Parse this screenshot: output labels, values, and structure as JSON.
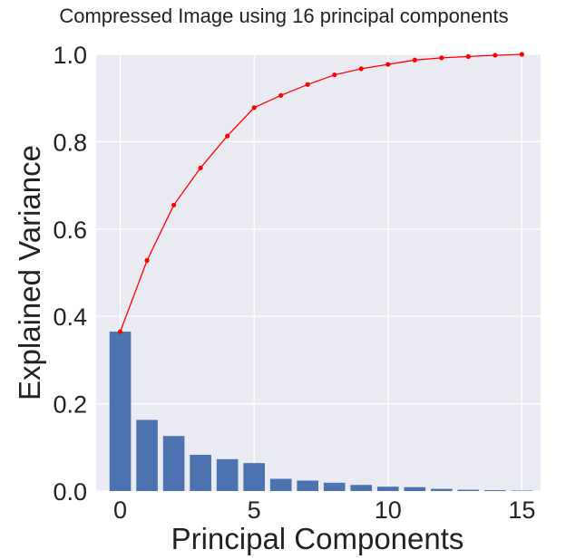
{
  "chart_data": {
    "type": "bar",
    "title": "Compressed Image using 16 principal components",
    "xlabel": "Principal Components",
    "ylabel": "Explained Variance",
    "x": [
      0,
      1,
      2,
      3,
      4,
      5,
      6,
      7,
      8,
      9,
      10,
      11,
      12,
      13,
      14,
      15
    ],
    "xticks": [
      "0",
      "5",
      "10",
      "15"
    ],
    "yticks": [
      "0.0",
      "0.2",
      "0.4",
      "0.6",
      "0.8",
      "1.0"
    ],
    "xlim": [
      -0.9,
      15.7
    ],
    "ylim": [
      0,
      1.0
    ],
    "grid": true,
    "series": [
      {
        "type": "bar",
        "color": "#4c72b0",
        "values": [
          0.365,
          0.163,
          0.126,
          0.083,
          0.073,
          0.064,
          0.028,
          0.024,
          0.019,
          0.014,
          0.01,
          0.009,
          0.005,
          0.003,
          0.002,
          0.001
        ]
      },
      {
        "type": "line",
        "color": "#ff0000",
        "values": [
          0.365,
          0.528,
          0.655,
          0.74,
          0.813,
          0.878,
          0.906,
          0.931,
          0.953,
          0.967,
          0.977,
          0.987,
          0.992,
          0.995,
          0.998,
          1.0
        ]
      }
    ]
  }
}
